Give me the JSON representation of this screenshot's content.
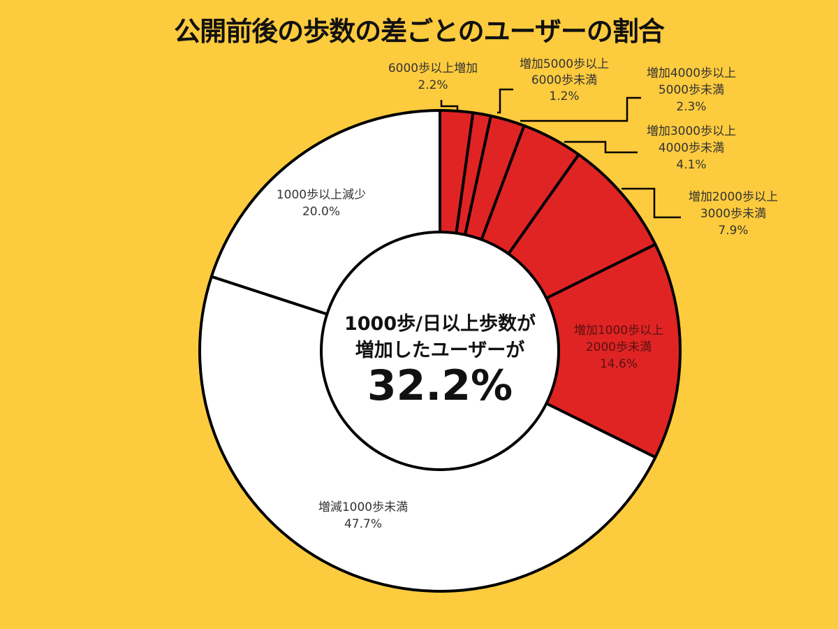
{
  "chart_data": {
    "type": "pie",
    "variant": "donut",
    "title": "公開前後の歩数の差ごとのユーザーの割合",
    "slices": [
      {
        "label": [
          "6000歩以上増加"
        ],
        "value": 2.2,
        "value_label": "2.2%",
        "color": "#E02424"
      },
      {
        "label": [
          "増加5000歩以上",
          "6000歩未満"
        ],
        "value": 1.2,
        "value_label": "1.2%",
        "color": "#E02424"
      },
      {
        "label": [
          "増加4000歩以上",
          "5000歩未満"
        ],
        "value": 2.3,
        "value_label": "2.3%",
        "color": "#E02424"
      },
      {
        "label": [
          "増加3000歩以上",
          "4000歩未満"
        ],
        "value": 4.1,
        "value_label": "4.1%",
        "color": "#E02424"
      },
      {
        "label": [
          "増加2000歩以上",
          "3000歩未満"
        ],
        "value": 7.9,
        "value_label": "7.9%",
        "color": "#E02424"
      },
      {
        "label": [
          "増加1000歩以上",
          "2000歩未満"
        ],
        "value": 14.6,
        "value_label": "14.6%",
        "color": "#E02424"
      },
      {
        "label": [
          "増減1000歩未満"
        ],
        "value": 47.7,
        "value_label": "47.7%",
        "color": "#FFFFFF"
      },
      {
        "label": [
          "1000歩以上減少"
        ],
        "value": 20.0,
        "value_label": "20.0%",
        "color": "#FFFFFF"
      }
    ],
    "center_text": [
      "1000歩/日以上歩数が",
      "増加したユーザーが"
    ],
    "center_value": "32.2%",
    "background": "#FDCB3E",
    "start": "top",
    "direction": "clockwise"
  }
}
